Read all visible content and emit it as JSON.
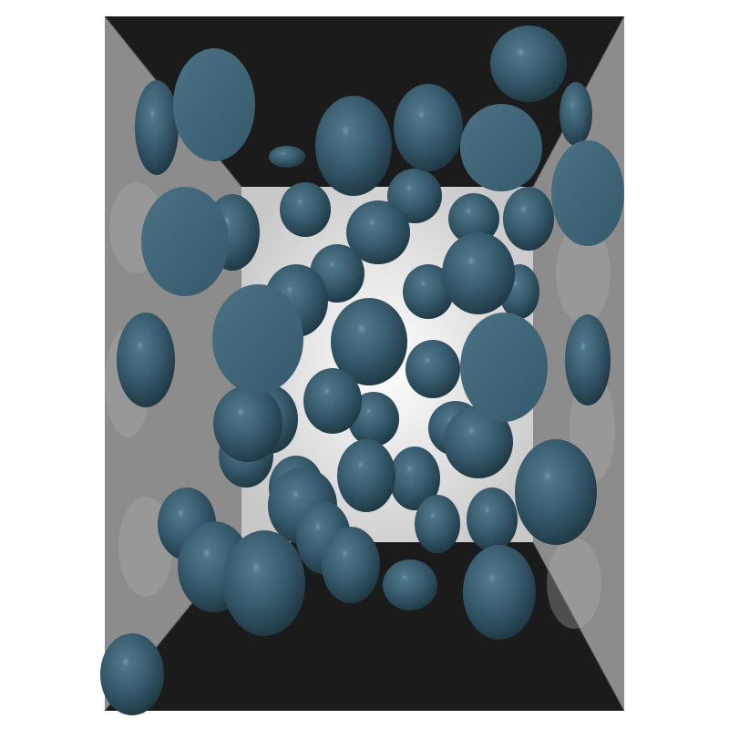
{
  "scene": {
    "subject": "particle-packing-render",
    "background_color": "#ffffff",
    "box": {
      "wall_side_color": "#8c8c8c",
      "wall_floor_color": "#1b1b1b",
      "wall_back_color": "#e6e6e6",
      "edge_color": "#5e5e5e"
    },
    "particle_color": "#35596b",
    "particle_highlight_color": "#7fa6b8",
    "particle_shadow_color": "#15252e",
    "particle_flat_face_color": "#3f6779"
  }
}
